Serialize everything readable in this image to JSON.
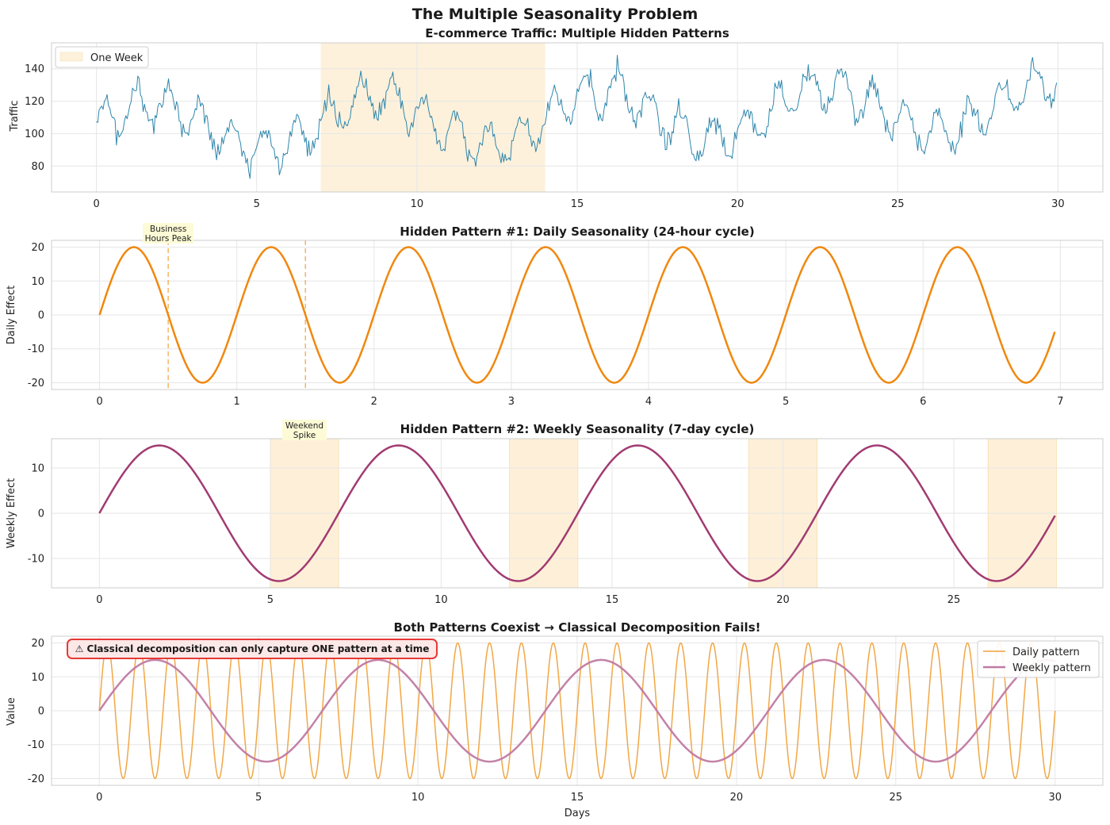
{
  "figure": {
    "suptitle": "The Multiple Seasonality Problem"
  },
  "chart_data": [
    {
      "type": "line",
      "title": "E-commerce Traffic: Multiple Hidden Patterns",
      "xlabel": "",
      "ylabel": "Traffic",
      "xlim": [
        0,
        30
      ],
      "ylim": [
        64,
        156
      ],
      "xticks": [
        0,
        5,
        10,
        15,
        20,
        25,
        30
      ],
      "yticks": [
        80,
        100,
        120,
        140
      ],
      "grid": true,
      "legend_position": "upper-left",
      "highlight": {
        "label": "One Week",
        "x_start": 7,
        "x_end": 14,
        "color": "#fdf1dc"
      },
      "series": [
        {
          "color": "#2e86ab",
          "base": 110,
          "trend_per_day": 0.5,
          "daily_amplitude": 20,
          "weekly_amplitude": 15,
          "noise": 5,
          "x_end": 30
        }
      ]
    },
    {
      "type": "line",
      "title": "Hidden Pattern #1: Daily Seasonality (24-hour cycle)",
      "xlabel": "",
      "ylabel": "Daily Effect",
      "xlim": [
        0,
        6.96
      ],
      "ylim": [
        -20,
        20
      ],
      "xticks": [
        0,
        1,
        2,
        3,
        4,
        5,
        6,
        7
      ],
      "yticks": [
        -20,
        -10,
        0,
        10,
        20
      ],
      "grid": true,
      "annotation": {
        "lines": [
          "Business",
          "Hours Peak"
        ],
        "x": 0.5
      },
      "vlines": [
        0.5,
        1.5
      ],
      "series": [
        {
          "color": "#f0880f",
          "amplitude": 20,
          "period_days": 1
        }
      ]
    },
    {
      "type": "line",
      "title": "Hidden Pattern #2: Weekly Seasonality (7-day cycle)",
      "xlabel": "",
      "ylabel": "Weekly Effect",
      "xlim": [
        0,
        27.96
      ],
      "ylim": [
        -15,
        15
      ],
      "xticks": [
        0,
        5,
        10,
        15,
        20,
        25
      ],
      "yticks": [
        -10,
        0,
        10
      ],
      "grid": true,
      "annotation": {
        "lines": [
          "Weekend",
          "Spike"
        ],
        "x": 6
      },
      "weekend_bands": [
        [
          5,
          7
        ],
        [
          12,
          14
        ],
        [
          19,
          21
        ],
        [
          26,
          28
        ]
      ],
      "series": [
        {
          "color": "#a23b72",
          "amplitude": 15,
          "period_days": 7
        }
      ]
    },
    {
      "type": "line",
      "title": "Both Patterns Coexist → Classical Decomposition Fails!",
      "xlabel": "Days",
      "ylabel": "Value",
      "xlim": [
        0,
        30
      ],
      "ylim": [
        -20,
        20
      ],
      "xticks": [
        0,
        5,
        10,
        15,
        20,
        25,
        30
      ],
      "yticks": [
        -20,
        -10,
        0,
        10,
        20
      ],
      "grid": true,
      "legend_position": "upper-right",
      "warning": "⚠ Classical decomposition can only capture ONE pattern at a time",
      "series": [
        {
          "name": "Daily pattern",
          "color": "#f0a23c",
          "amplitude": 20,
          "period_days": 1
        },
        {
          "name": "Weekly pattern",
          "color": "#c07aa3",
          "amplitude": 15,
          "period_days": 7
        }
      ]
    }
  ]
}
